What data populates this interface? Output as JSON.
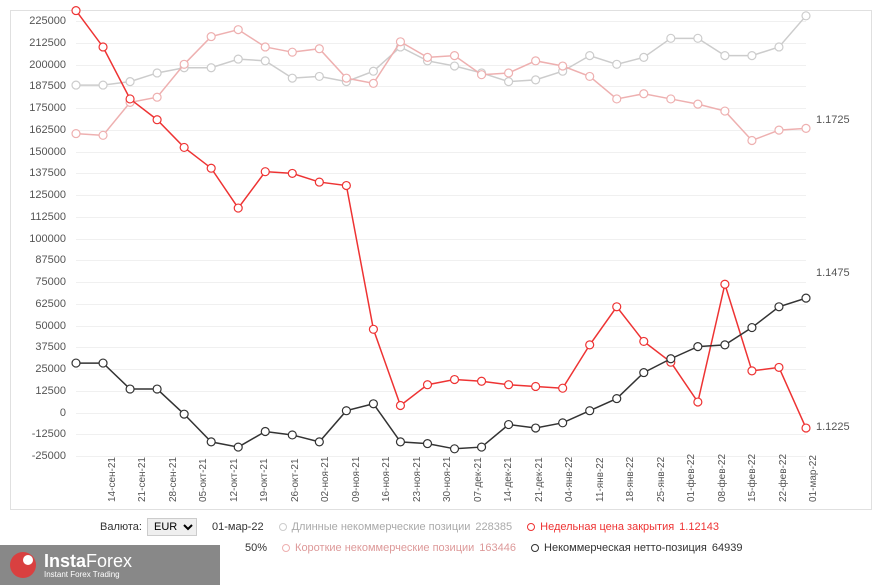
{
  "chart": {
    "type": "line",
    "background_color": "#ffffff",
    "grid_color": "#f0f0f0",
    "axis_color": "#e0e0e0",
    "text_color": "#555555",
    "axis_fontsize": 11,
    "xaxis_fontsize": 10,
    "left_y": {
      "min": -25000,
      "max": 225000,
      "ticks": [
        -25000,
        -12500,
        0,
        12500,
        25000,
        37500,
        50000,
        62500,
        75000,
        87500,
        100000,
        112500,
        125000,
        137500,
        150000,
        162500,
        175000,
        187500,
        200000,
        212500,
        225000
      ]
    },
    "right_y": {
      "ticks": [
        1.1225,
        1.1475,
        1.1725
      ],
      "positions": [
        -8500,
        80000,
        168000
      ]
    },
    "x_labels": [
      "",
      "14-сен-21",
      "21-сен-21",
      "28-сен-21",
      "05-окт-21",
      "12-окт-21",
      "19-окт-21",
      "26-окт-21",
      "02-ноя-21",
      "09-ноя-21",
      "16-ноя-21",
      "23-ноя-21",
      "30-ноя-21",
      "07-дек-21",
      "14-дек-21",
      "21-дек-21",
      "04-янв-22",
      "11-янв-22",
      "18-янв-22",
      "25-янв-22",
      "01-фев-22",
      "08-фев-22",
      "15-фев-22",
      "22-фев-22",
      "01-мар-22"
    ],
    "series": {
      "long_noncommercial": {
        "color": "#cccccc",
        "marker": "circle",
        "marker_size": 4,
        "line_width": 1.5,
        "values": [
          188000,
          188000,
          190000,
          195000,
          198000,
          198000,
          203000,
          202000,
          192000,
          193000,
          190000,
          196000,
          210000,
          202000,
          199000,
          195000,
          190000,
          191000,
          196000,
          205000,
          200000,
          204000,
          215000,
          215000,
          205000,
          205000,
          210000,
          228000
        ]
      },
      "short_noncommercial": {
        "color": "#eeb0b0",
        "marker": "circle",
        "marker_size": 4,
        "line_width": 1.5,
        "values": [
          160000,
          159000,
          178000,
          181000,
          200000,
          216000,
          220000,
          210000,
          207000,
          209000,
          192000,
          189000,
          213000,
          204000,
          205000,
          194000,
          195000,
          202000,
          199000,
          193000,
          180000,
          183000,
          180000,
          177000,
          173000,
          156000,
          162000,
          163000
        ]
      },
      "net_noncommercial": {
        "color": "#333333",
        "marker": "circle",
        "marker_size": 4,
        "line_width": 1.5,
        "values": [
          27500,
          27500,
          12500,
          12500,
          -2000,
          -18000,
          -21000,
          -12000,
          -14000,
          -18000,
          0,
          4000,
          -18000,
          -19000,
          -22000,
          -21000,
          -8000,
          -10000,
          -7000,
          0,
          7000,
          22000,
          30000,
          37000,
          38000,
          48000,
          60000,
          65000
        ]
      },
      "weekly_close": {
        "color": "#ee3333",
        "marker": "circle",
        "marker_size": 4,
        "line_width": 1.5,
        "values": [
          231000,
          210000,
          180000,
          168000,
          152000,
          140000,
          117000,
          138000,
          137000,
          132000,
          130000,
          47000,
          3000,
          15000,
          18000,
          17000,
          15000,
          14000,
          13000,
          38000,
          60000,
          40000,
          28000,
          5000,
          73000,
          23000,
          25000,
          -10000
        ]
      }
    }
  },
  "legend": {
    "currency_label": "Валюта:",
    "currency_value": "EUR",
    "date_value": "01-мар-22",
    "pct_value": "50%",
    "items": {
      "long": {
        "label": "Длинные некоммерческие позиции",
        "value": "228385",
        "color": "#cccccc"
      },
      "weekly": {
        "label": "Недельная цена закрытия",
        "value": "1.12143",
        "color": "#ee3333"
      },
      "short": {
        "label": "Короткие некоммерческие позиции",
        "value": "163446",
        "color": "#eeb0b0"
      },
      "net": {
        "label": "Некоммерческая нетто-позиция",
        "value": "64939",
        "color": "#333333"
      }
    }
  },
  "logo": {
    "brand_part1": "Insta",
    "brand_part2": "Forex",
    "tagline": "Instant Forex Trading"
  }
}
